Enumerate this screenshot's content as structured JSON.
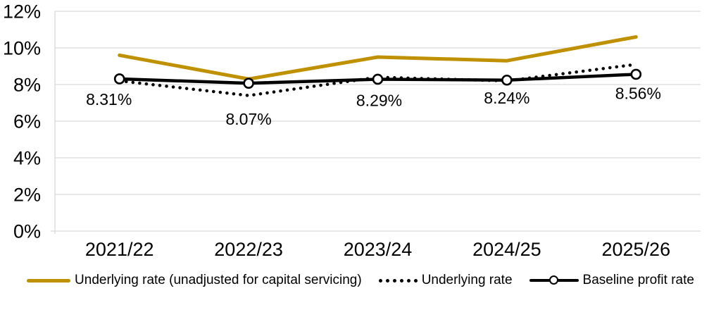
{
  "chart_data": {
    "type": "line",
    "categories": [
      "2021/22",
      "2022/23",
      "2023/24",
      "2024/25",
      "2025/26"
    ],
    "series": [
      {
        "name": "Underlying rate (unadjusted for capital servicing)",
        "values": [
          9.6,
          8.3,
          9.5,
          9.3,
          10.6
        ],
        "color": "#BF9000",
        "style": "solid",
        "marker": "none"
      },
      {
        "name": "Underlying rate",
        "values": [
          8.2,
          7.4,
          8.4,
          8.2,
          9.1
        ],
        "color": "#000000",
        "style": "dotted",
        "marker": "none"
      },
      {
        "name": "Baseline profit rate",
        "values": [
          8.31,
          8.07,
          8.29,
          8.24,
          8.56
        ],
        "color": "#000000",
        "style": "solid",
        "marker": "circle-open"
      }
    ],
    "data_labels": {
      "series": "Baseline profit rate",
      "values": [
        "8.31%",
        "8.07%",
        "8.29%",
        "8.24%",
        "8.56%"
      ]
    },
    "y_axis": {
      "min": 0,
      "max": 12,
      "step": 2,
      "tick_labels": [
        "0%",
        "2%",
        "4%",
        "6%",
        "8%",
        "10%",
        "12%"
      ]
    },
    "x_axis": {
      "tick_labels": [
        "2021/22",
        "2022/23",
        "2023/24",
        "2024/25",
        "2025/26"
      ]
    },
    "grid": true,
    "gridline_color": "#D9D9D9",
    "axis_line_color": "#D9D9D9",
    "text_color": "#000000",
    "legend_position": "bottom"
  }
}
